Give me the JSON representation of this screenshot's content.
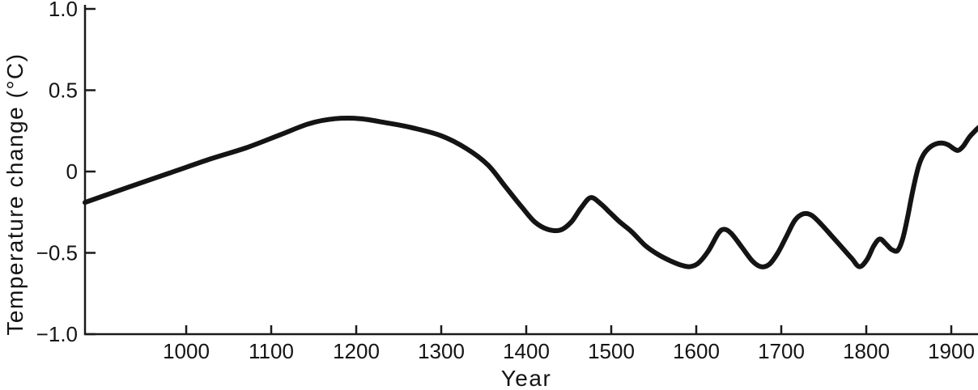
{
  "chart_data": {
    "type": "line",
    "title": "",
    "xlabel": "Year",
    "ylabel": "Temperature change (°C)",
    "xlim": [
      881,
      1932
    ],
    "ylim": [
      -1.0,
      1.0
    ],
    "grid": false,
    "legend": "none",
    "x_ticks": [
      {
        "value": 1000,
        "label": "1000"
      },
      {
        "value": 1100,
        "label": "1100"
      },
      {
        "value": 1200,
        "label": "1200"
      },
      {
        "value": 1300,
        "label": "1300"
      },
      {
        "value": 1400,
        "label": "1400"
      },
      {
        "value": 1500,
        "label": "1500"
      },
      {
        "value": 1600,
        "label": "1600"
      },
      {
        "value": 1700,
        "label": "1700"
      },
      {
        "value": 1800,
        "label": "1800"
      },
      {
        "value": 1900,
        "label": "1900"
      }
    ],
    "y_ticks": [
      {
        "value": 1.0,
        "label": "1.0"
      },
      {
        "value": 0.5,
        "label": "0.5"
      },
      {
        "value": 0,
        "label": "0"
      },
      {
        "value": -0.5,
        "label": "−0.5"
      },
      {
        "value": -1.0,
        "label": "−1.0"
      }
    ],
    "colors": {
      "line": "#141414",
      "axis": "#1a1a1a",
      "background": "#ffffff"
    },
    "series": [
      {
        "name": "temperature-change",
        "points": [
          [
            881,
            -0.19
          ],
          [
            930,
            -0.1
          ],
          [
            980,
            -0.01
          ],
          [
            1030,
            0.08
          ],
          [
            1070,
            0.145
          ],
          [
            1110,
            0.225
          ],
          [
            1145,
            0.295
          ],
          [
            1175,
            0.325
          ],
          [
            1205,
            0.325
          ],
          [
            1235,
            0.3
          ],
          [
            1265,
            0.27
          ],
          [
            1300,
            0.22
          ],
          [
            1330,
            0.14
          ],
          [
            1355,
            0.04
          ],
          [
            1375,
            -0.09
          ],
          [
            1395,
            -0.22
          ],
          [
            1410,
            -0.31
          ],
          [
            1425,
            -0.355
          ],
          [
            1440,
            -0.36
          ],
          [
            1453,
            -0.31
          ],
          [
            1465,
            -0.22
          ],
          [
            1476,
            -0.16
          ],
          [
            1488,
            -0.2
          ],
          [
            1498,
            -0.25
          ],
          [
            1510,
            -0.31
          ],
          [
            1524,
            -0.37
          ],
          [
            1540,
            -0.455
          ],
          [
            1555,
            -0.51
          ],
          [
            1570,
            -0.55
          ],
          [
            1582,
            -0.575
          ],
          [
            1592,
            -0.585
          ],
          [
            1602,
            -0.565
          ],
          [
            1614,
            -0.49
          ],
          [
            1626,
            -0.38
          ],
          [
            1633,
            -0.355
          ],
          [
            1641,
            -0.38
          ],
          [
            1653,
            -0.46
          ],
          [
            1666,
            -0.55
          ],
          [
            1676,
            -0.585
          ],
          [
            1686,
            -0.57
          ],
          [
            1696,
            -0.5
          ],
          [
            1706,
            -0.4
          ],
          [
            1716,
            -0.3
          ],
          [
            1726,
            -0.26
          ],
          [
            1736,
            -0.27
          ],
          [
            1748,
            -0.33
          ],
          [
            1760,
            -0.4
          ],
          [
            1772,
            -0.47
          ],
          [
            1783,
            -0.535
          ],
          [
            1792,
            -0.585
          ],
          [
            1801,
            -0.54
          ],
          [
            1809,
            -0.455
          ],
          [
            1816,
            -0.415
          ],
          [
            1823,
            -0.445
          ],
          [
            1830,
            -0.48
          ],
          [
            1837,
            -0.485
          ],
          [
            1843,
            -0.41
          ],
          [
            1849,
            -0.27
          ],
          [
            1855,
            -0.11
          ],
          [
            1862,
            0.04
          ],
          [
            1868,
            0.11
          ],
          [
            1875,
            0.15
          ],
          [
            1882,
            0.17
          ],
          [
            1889,
            0.175
          ],
          [
            1896,
            0.165
          ],
          [
            1903,
            0.14
          ],
          [
            1908,
            0.13
          ],
          [
            1914,
            0.155
          ],
          [
            1921,
            0.21
          ],
          [
            1928,
            0.25
          ],
          [
            1932,
            0.27
          ]
        ]
      }
    ]
  }
}
